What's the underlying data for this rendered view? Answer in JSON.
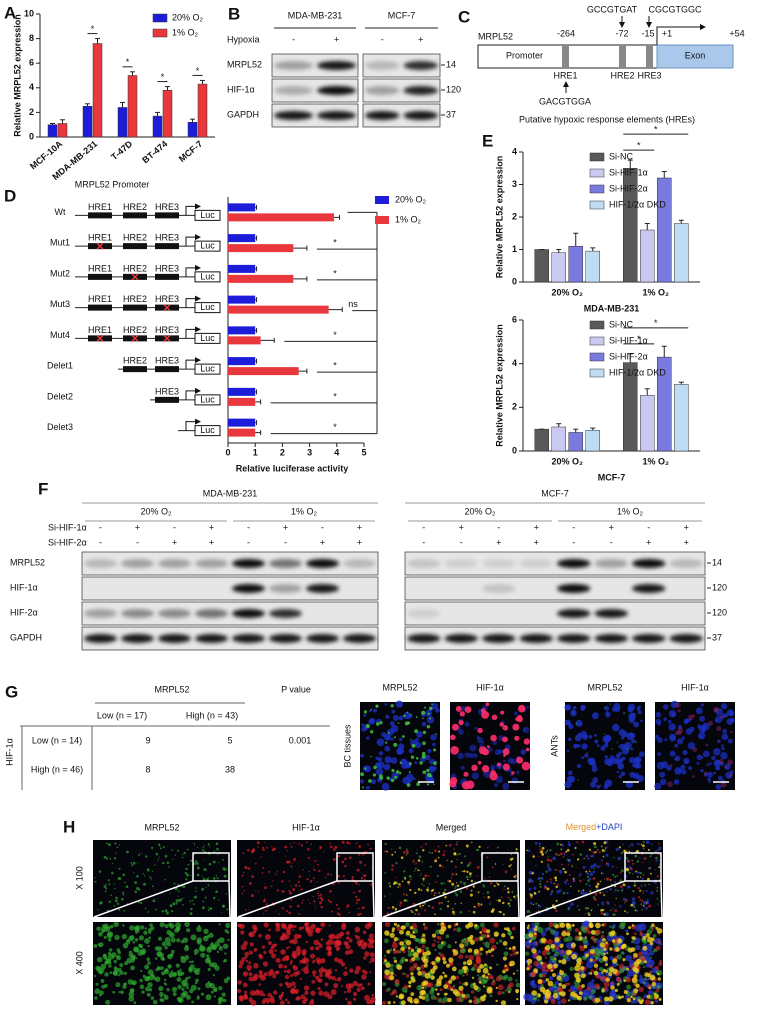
{
  "panel_labels": [
    "A",
    "B",
    "C",
    "D",
    "E",
    "F",
    "G",
    "H"
  ],
  "chart_data": [
    {
      "type": "bar",
      "y_label": "Relative MRPL52 expression",
      "categories": [
        "MCF-10A",
        "MDA-MB-231",
        "T-47D",
        "BT-474",
        "MCF-7"
      ],
      "series": [
        {
          "name": "20% O₂",
          "color": "#1c1cd9",
          "values": [
            1.0,
            2.5,
            2.4,
            1.7,
            1.2
          ],
          "errors": [
            0.1,
            0.2,
            0.4,
            0.3,
            0.25
          ]
        },
        {
          "name": "1% O₂",
          "color": "#e8383d",
          "values": [
            1.1,
            7.6,
            5.0,
            3.8,
            4.3
          ],
          "errors": [
            0.3,
            0.4,
            0.3,
            0.3,
            0.3
          ]
        }
      ],
      "ylim": [
        0,
        10
      ],
      "yticks": [
        0,
        2,
        4,
        6,
        8,
        10
      ],
      "significance": [
        null,
        "*",
        "*",
        "*",
        "*"
      ]
    },
    {
      "type": "bar",
      "orientation": "horizontal",
      "title": "MRPL52 Promoter",
      "x_label": "Relative luciferase activity",
      "categories": [
        "Wt",
        "Mut1",
        "Mut2",
        "Mut3",
        "Mut4",
        "Delet1",
        "Delet2",
        "Delet3"
      ],
      "series": [
        {
          "name": "20% O₂",
          "color": "#1c1cd9",
          "values": [
            1.0,
            1.0,
            1.0,
            1.0,
            1.0,
            1.0,
            1.0,
            1.0
          ],
          "errors": [
            0.05,
            0.05,
            0.05,
            0.05,
            0.05,
            0.05,
            0.05,
            0.05
          ]
        },
        {
          "name": "1%  O₂",
          "color": "#e8383d",
          "values": [
            3.9,
            2.4,
            2.4,
            3.7,
            1.2,
            2.6,
            1.0,
            1.0
          ],
          "errors": [
            0.2,
            0.5,
            0.5,
            0.5,
            0.5,
            0.3,
            0.2,
            0.2
          ]
        }
      ],
      "xlim": [
        0,
        5
      ],
      "xticks": [
        0,
        1,
        2,
        3,
        4,
        5
      ],
      "significance": [
        null,
        "*",
        "*",
        "ns",
        "*",
        "*",
        "*",
        "*"
      ],
      "elements": [
        "HRE1",
        "HRE2",
        "HRE3"
      ],
      "reporter": "Luc"
    },
    {
      "type": "bar",
      "y_label": "Relative MRPL52 expression",
      "x_label": "MDA-MB-231",
      "categories": [
        "20% O₂",
        "1% O₂"
      ],
      "series": [
        {
          "name": "Si-NC",
          "color": "#595959",
          "values": [
            1.0,
            3.5
          ],
          "errors": [
            0,
            0.25
          ]
        },
        {
          "name": "Si-HIF-1α",
          "color": "#c9c9f2",
          "values": [
            0.9,
            1.6
          ],
          "errors": [
            0.1,
            0.2
          ]
        },
        {
          "name": "Si-HIF-2α",
          "color": "#7a7ae0",
          "values": [
            1.1,
            3.2
          ],
          "errors": [
            0.4,
            0.2
          ]
        },
        {
          "name": "HIF-1/2α DKD",
          "color": "#bfdcf5",
          "values": [
            0.95,
            1.8
          ],
          "errors": [
            0.1,
            0.1
          ]
        }
      ],
      "ylim": [
        0,
        4
      ],
      "yticks": [
        0,
        1,
        2,
        3,
        4
      ],
      "significance": [
        "*",
        "*"
      ]
    },
    {
      "type": "bar",
      "y_label": "Relative MRPL52 expression",
      "x_label": "MCF-7",
      "categories": [
        "20% O₂",
        "1% O₂"
      ],
      "series": [
        {
          "name": "Si-NC",
          "color": "#595959",
          "values": [
            1.0,
            4.05
          ],
          "errors": [
            0,
            0.4
          ]
        },
        {
          "name": "Si-HIF-1α",
          "color": "#c9c9f2",
          "values": [
            1.1,
            2.55
          ],
          "errors": [
            0.15,
            0.3
          ]
        },
        {
          "name": "Si-HIF-2α",
          "color": "#7a7ae0",
          "values": [
            0.85,
            4.3
          ],
          "errors": [
            0.15,
            0.5
          ]
        },
        {
          "name": "HIF-1/2α DKD",
          "color": "#bfdcf5",
          "values": [
            0.95,
            3.05
          ],
          "errors": [
            0.1,
            0.1
          ]
        }
      ],
      "ylim": [
        0,
        6
      ],
      "yticks": [
        0,
        2,
        4,
        6
      ],
      "significance": [
        "*",
        "*"
      ]
    }
  ],
  "blot_b": {
    "cell_lines": [
      "MDA-MB-231",
      "MCF-7"
    ],
    "treatment": {
      "name": "Hypoxia",
      "signs": [
        "-",
        "+"
      ]
    },
    "proteins": [
      {
        "name": "MRPL52",
        "kda": 14
      },
      {
        "name": "HIF-1α",
        "kda": 120
      },
      {
        "name": "GAPDH",
        "kda": 37
      }
    ]
  },
  "promoter_c": {
    "gene": "MRPL52",
    "regions": [
      "Promoter",
      "Exon"
    ],
    "positions": [
      "-264",
      "-72",
      "-15",
      "+1",
      "+54"
    ],
    "hres": [
      "HRE1",
      "HRE2",
      "HRE3"
    ],
    "sequences": [
      "GACGTGGA",
      "GCCGTGAT",
      "CGCGTGGC"
    ],
    "caption": "Putative hypoxic response elements (HREs)"
  },
  "blot_f": {
    "cell_lines": [
      "MDA-MB-231",
      "MCF-7"
    ],
    "conditions": [
      "20% O₂",
      "1% O₂"
    ],
    "treatments": [
      {
        "name": "Si-HIF-1α",
        "signs": [
          "-",
          "+",
          "-",
          "+"
        ]
      },
      {
        "name": "Si-HIF-2α",
        "signs": [
          "-",
          "-",
          "+",
          "+"
        ]
      }
    ],
    "proteins": [
      {
        "name": "MRPL52",
        "kda": 14
      },
      {
        "name": "HIF-1α",
        "kda": 120
      },
      {
        "name": "HIF-2α",
        "kda": 120
      },
      {
        "name": "GAPDH",
        "kda": 37
      }
    ]
  },
  "table_g": {
    "column_group": "MRPL52",
    "p_header": "P value",
    "columns": [
      "Low (n = 17)",
      "High (n = 43)"
    ],
    "row_group": "HIF-1α",
    "rows": [
      {
        "label": "Low (n = 14)",
        "cells": [
          9,
          5
        ],
        "p": 0.001
      },
      {
        "label": "High (n = 46)",
        "cells": [
          8,
          38
        ]
      }
    ]
  },
  "ihc_g": {
    "stains": [
      "MRPL52",
      "HIF-1α"
    ],
    "tissues": [
      "BC tissues",
      "ANTs"
    ]
  },
  "if_h": {
    "columns": [
      "MRPL52",
      "HIF-1α",
      "Merged"
    ],
    "dapi": "+DAPI",
    "magnifications": [
      "X 100",
      "X 400"
    ]
  }
}
